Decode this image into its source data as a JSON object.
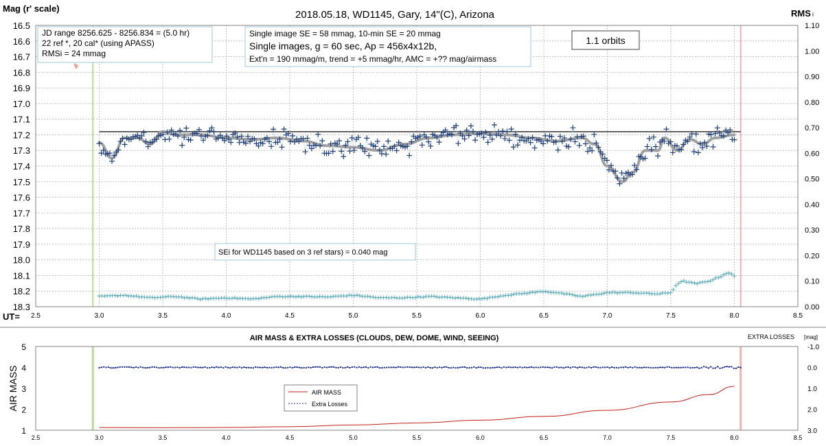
{
  "chart_data": [
    {
      "type": "scatter",
      "title": "2018.05.18,  WD1145, Gary, 14\"(C), Arizona",
      "ylabel": "Mag (r' scale)",
      "y2label": "RMS",
      "y2label_suffix": "i",
      "xlabel": "UT=",
      "xlim": [
        2.5,
        8.5
      ],
      "ylim": [
        16.5,
        18.3
      ],
      "y_inverted": true,
      "y2lim": [
        0.0,
        1.1
      ],
      "x_ticks": [
        "2.5",
        "3.0",
        "3.5",
        "4.0",
        "4.5",
        "5.0",
        "5.5",
        "6.0",
        "6.5",
        "7.0",
        "7.5",
        "8.0",
        "8.5"
      ],
      "y_ticks": [
        "16.5",
        "16.6",
        "16.7",
        "16.8",
        "16.9",
        "17.0",
        "17.1",
        "17.2",
        "17.3",
        "17.4",
        "17.5",
        "17.6",
        "17.7",
        "17.8",
        "17.9",
        "18.0",
        "18.1",
        "18.2",
        "18.3"
      ],
      "y2_ticks": [
        "1.10",
        "1.00",
        "0.90",
        "0.80",
        "0.70",
        "0.60",
        "0.50",
        "0.40",
        "0.30",
        "0.20",
        "0.10",
        "0.00"
      ],
      "grid": true,
      "annotations": {
        "jd_box": [
          "JD range  8256.625 - 8256.834  = (5.0 hr)",
          "22 ref *, 20 cal* (using APASS)",
          "RMSi = 24 mmag"
        ],
        "info_box": [
          "Single image SE = 58 mmag, 10-min SE = 20 mmag",
          "Single images, g = 60 sec, Ap = 456x4x12b,",
          "Ext'n = 190 mmag/m, trend = +5 mmag/hr, AMC = +?? mag/airmass"
        ],
        "orbits_box": "1.1 orbits",
        "sei_box": "SEi for WD1145 based on 3 ref stars) = 0.040 mag"
      },
      "vertical_markers": {
        "start": 2.95,
        "end": 8.05
      },
      "baseline_mag": 17.18,
      "series": [
        {
          "role": "magnitudes",
          "color": "#1f3f7a",
          "x_range": [
            3.0,
            8.0
          ],
          "trend_points": [
            [
              3.0,
              17.25
            ],
            [
              3.1,
              17.35
            ],
            [
              3.2,
              17.22
            ],
            [
              3.3,
              17.22
            ],
            [
              3.4,
              17.26
            ],
            [
              3.5,
              17.18
            ],
            [
              3.6,
              17.2
            ],
            [
              3.8,
              17.2
            ],
            [
              4.0,
              17.22
            ],
            [
              4.2,
              17.23
            ],
            [
              4.4,
              17.22
            ],
            [
              4.6,
              17.24
            ],
            [
              4.8,
              17.27
            ],
            [
              5.0,
              17.28
            ],
            [
              5.2,
              17.3
            ],
            [
              5.4,
              17.26
            ],
            [
              5.6,
              17.22
            ],
            [
              5.8,
              17.2
            ],
            [
              6.0,
              17.19
            ],
            [
              6.2,
              17.2
            ],
            [
              6.4,
              17.22
            ],
            [
              6.6,
              17.24
            ],
            [
              6.8,
              17.22
            ],
            [
              6.9,
              17.26
            ],
            [
              7.0,
              17.4
            ],
            [
              7.12,
              17.5
            ],
            [
              7.2,
              17.44
            ],
            [
              7.3,
              17.3
            ],
            [
              7.4,
              17.3
            ],
            [
              7.45,
              17.22
            ],
            [
              7.55,
              17.3
            ],
            [
              7.65,
              17.23
            ],
            [
              7.75,
              17.26
            ],
            [
              7.85,
              17.22
            ],
            [
              8.0,
              17.2
            ]
          ]
        },
        {
          "role": "trend",
          "color": "#a0a0a0"
        },
        {
          "role": "rms",
          "color": "#5aaaba",
          "axis": "right",
          "points": [
            [
              3.0,
              0.04
            ],
            [
              3.2,
              0.045
            ],
            [
              3.4,
              0.035
            ],
            [
              3.6,
              0.04
            ],
            [
              3.8,
              0.03
            ],
            [
              4.0,
              0.035
            ],
            [
              4.2,
              0.03
            ],
            [
              4.4,
              0.04
            ],
            [
              4.6,
              0.04
            ],
            [
              4.8,
              0.038
            ],
            [
              5.0,
              0.045
            ],
            [
              5.2,
              0.035
            ],
            [
              5.4,
              0.035
            ],
            [
              5.6,
              0.04
            ],
            [
              5.8,
              0.035
            ],
            [
              6.0,
              0.03
            ],
            [
              6.2,
              0.045
            ],
            [
              6.4,
              0.055
            ],
            [
              6.5,
              0.06
            ],
            [
              6.6,
              0.055
            ],
            [
              6.8,
              0.04
            ],
            [
              7.0,
              0.055
            ],
            [
              7.2,
              0.055
            ],
            [
              7.4,
              0.05
            ],
            [
              7.5,
              0.055
            ],
            [
              7.55,
              0.09
            ],
            [
              7.6,
              0.1
            ],
            [
              7.7,
              0.09
            ],
            [
              7.8,
              0.1
            ],
            [
              7.9,
              0.12
            ],
            [
              7.95,
              0.135
            ],
            [
              8.0,
              0.12
            ]
          ]
        }
      ]
    },
    {
      "type": "line",
      "title": "AIR MASS & EXTRA LOSSES (CLOUDS, DEW, DOME, WIND, SEEING)",
      "ylabel": "AIR MASS",
      "y2label": "EXTRA LOSSES",
      "y2label_suffix": "[mag]",
      "xlim": [
        2.5,
        8.5
      ],
      "ylim": [
        1,
        5
      ],
      "y2lim": [
        -1.0,
        3.0
      ],
      "y2_inverted": true,
      "x_ticks": [
        "2.5",
        "3.0",
        "3.5",
        "4.0",
        "4.5",
        "5.0",
        "5.5",
        "6.0",
        "6.5",
        "7.0",
        "7.5",
        "8.0",
        "8.5"
      ],
      "y_ticks": [
        "5",
        "4",
        "3",
        "2",
        "1"
      ],
      "y2_ticks": [
        "-1.0",
        "0.0",
        "1.0",
        "2.0",
        "3.0"
      ],
      "grid": false,
      "legend": {
        "placement": "center-left",
        "entries": [
          "AIR MASS",
          "Extra Losses"
        ]
      },
      "vertical_markers": {
        "start": 2.95,
        "end": 8.05
      },
      "series": [
        {
          "name": "AIR MASS",
          "color": "#c0201a",
          "points": [
            [
              3.0,
              1.13
            ],
            [
              3.5,
              1.12
            ],
            [
              4.0,
              1.13
            ],
            [
              4.5,
              1.17
            ],
            [
              5.0,
              1.25
            ],
            [
              5.5,
              1.35
            ],
            [
              6.0,
              1.48
            ],
            [
              6.5,
              1.66
            ],
            [
              7.0,
              1.95
            ],
            [
              7.5,
              2.35
            ],
            [
              7.8,
              2.7
            ],
            [
              8.0,
              3.1
            ]
          ]
        },
        {
          "name": "Extra Losses",
          "color": "#1a2b8a",
          "axis": "right",
          "value": 0.0
        }
      ]
    }
  ],
  "colors": {
    "green_marker": "#b8dc98",
    "red_marker": "#f4b0b0",
    "grid": "#bfbfbf",
    "box_border": "#9ec8d8",
    "pink_dot": "#f0a090"
  }
}
